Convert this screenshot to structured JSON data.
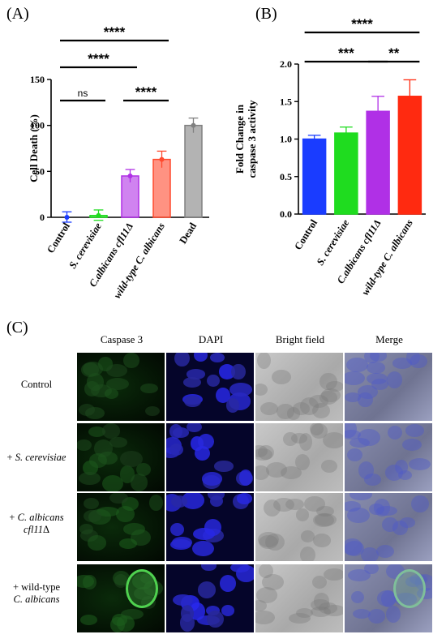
{
  "chart_data": [
    {
      "panel": "(A)",
      "type": "bar",
      "categories": [
        "Control",
        "S. cerevisiae",
        "C.albicans cfl11Δ",
        "wild-type C. albicans",
        "Dead"
      ],
      "category_italic": [
        false,
        true,
        true,
        true,
        false
      ],
      "values": [
        0,
        2,
        45,
        63,
        100
      ],
      "errors": [
        6,
        6,
        7,
        9,
        8
      ],
      "colors": [
        "#1a3cff",
        "#1fdc1f",
        "#b030e6",
        "#ff4a2e",
        "#808080"
      ],
      "ylabel": "Cell Death (%)",
      "ylim": [
        0,
        150
      ],
      "yticks": [
        0,
        50,
        100,
        150
      ],
      "points": [
        [
          0
        ],
        [
          2
        ],
        [
          45
        ],
        [
          63
        ],
        [
          100
        ]
      ],
      "significance": [
        {
          "from": 0,
          "to": 3,
          "label": "****"
        },
        {
          "from": 0,
          "to": 2,
          "label": "****"
        },
        {
          "from": 0,
          "to": 1,
          "label": "ns"
        },
        {
          "from": 2,
          "to": 3,
          "label": "****"
        }
      ]
    },
    {
      "panel": "(B)",
      "type": "bar",
      "categories": [
        "Control",
        "S. cerevisiae",
        "C.albicans cfl11Δ",
        "wild-type C. albicans"
      ],
      "category_italic": [
        false,
        true,
        true,
        true
      ],
      "values": [
        1.0,
        1.08,
        1.37,
        1.57
      ],
      "errors": [
        0.05,
        0.08,
        0.2,
        0.22
      ],
      "colors": [
        "#1a3cff",
        "#1fdc1f",
        "#b030e6",
        "#ff2a10"
      ],
      "ylabel_lines": [
        "Fold Change in",
        "caspase 3 activity"
      ],
      "ylim": [
        0,
        2.0
      ],
      "yticks": [
        "0.0",
        "0.5",
        "1.0",
        "1.5",
        "2.0"
      ],
      "significance": [
        {
          "from": 0,
          "to": 3,
          "label": "****"
        },
        {
          "from": 0,
          "to": 2,
          "label": "***"
        },
        {
          "from": 2,
          "to": 3,
          "label": "**"
        }
      ]
    }
  ],
  "panel_c": {
    "letter": "(C)",
    "columns": [
      "Caspase 3",
      "DAPI",
      "Bright field",
      "Merge"
    ],
    "rows": [
      {
        "prefix": "Control",
        "italic": "",
        "suffix": ""
      },
      {
        "prefix": "+ ",
        "italic": "S. cerevisiae",
        "suffix": ""
      },
      {
        "prefix": "+ ",
        "italic": "C. albicans",
        "suffix": "",
        "line2_italic": "cfl11",
        "line2_suffix": "Δ"
      },
      {
        "prefix": "+ wild-type",
        "italic": "",
        "suffix": "",
        "line2_italic": "C. albicans",
        "line2_suffix": ""
      }
    ]
  }
}
